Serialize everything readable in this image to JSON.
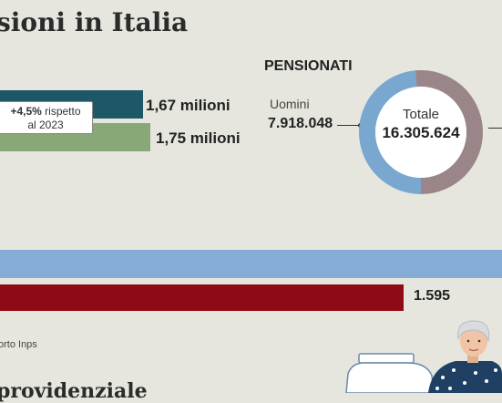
{
  "header": {
    "title": "sioni in Italia"
  },
  "chart_data": [
    {
      "type": "bar",
      "orientation": "horizontal",
      "series": [
        {
          "value_label": "1,67 milioni",
          "values": [
            1.67
          ],
          "color": "#1e5868"
        },
        {
          "value_label": "1,75 milioni",
          "values": [
            1.75
          ],
          "color": "#88a878"
        }
      ],
      "annotation": {
        "line1_bold": "+4,5%",
        "line1_rest": " rispetto",
        "line2": "al 2023"
      }
    },
    {
      "type": "pie",
      "title": "PENSIONATI",
      "center_label": "Totale",
      "center_value": "16.305.624",
      "slices": [
        {
          "label": "Uomini",
          "value_label": "7.918.048",
          "value": 7918048,
          "color": "#7aa7d0"
        },
        {
          "label": "",
          "value_label": "",
          "value": 8387576,
          "color": "#9a8588"
        }
      ]
    },
    {
      "type": "bar",
      "orientation": "horizontal",
      "series": [
        {
          "value_label": "",
          "color": "#84acd4"
        },
        {
          "value_label": "1.595",
          "values": [
            1595
          ],
          "color": "#8e0b16"
        }
      ]
    }
  ],
  "footer": {
    "source": "orto Inps",
    "section_title": "providenziale"
  },
  "colors": {
    "background": "#e6e6de",
    "navy": "#1e5868",
    "sage": "#88a878",
    "sky": "#84acd4",
    "maroon": "#8e0b16"
  }
}
